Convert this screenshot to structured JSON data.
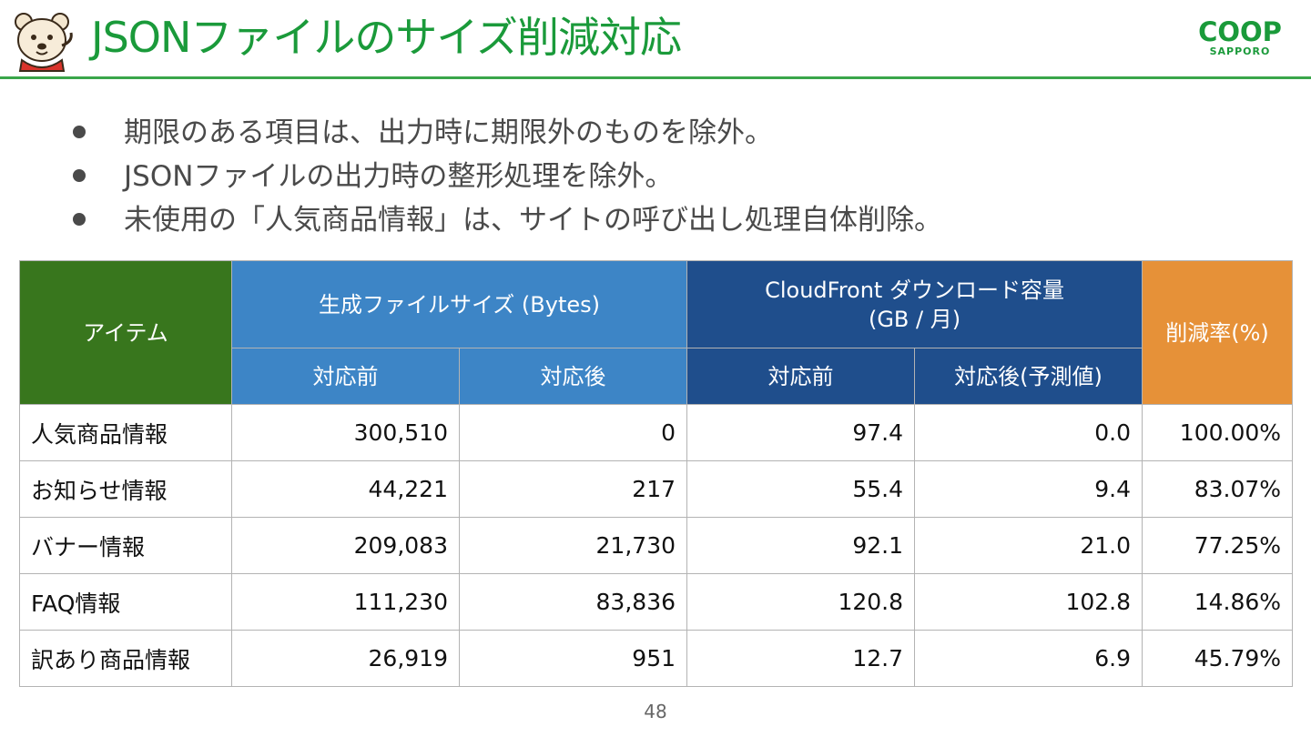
{
  "slide": {
    "title": "JSONファイルのサイズ削減対応",
    "logo": {
      "main": "COOP",
      "sub": "SAPPORO"
    },
    "bullets": [
      "期限のある項目は、出力時に期限外のものを除外。",
      "JSONファイルの出力時の整形処理を除外。",
      "未使用の「人気商品情報」は、サイトの呼び出し処理自体削除。"
    ],
    "page_number": "48"
  },
  "table": {
    "headers": {
      "item": "アイテム",
      "size_group": "生成ファイルサイズ (Bytes)",
      "cf_group_line1": "CloudFront ダウンロード容量",
      "cf_group_line2": "(GB / 月)",
      "rate": "削減率(%)",
      "size_before": "対応前",
      "size_after": "対応後",
      "cf_before": "対応前",
      "cf_after": "対応後(予測値)"
    },
    "rows": [
      {
        "item": "人気商品情報",
        "size_before": "300,510",
        "size_after": "0",
        "cf_before": "97.4",
        "cf_after": "0.0",
        "rate": "100.00%"
      },
      {
        "item": "お知らせ情報",
        "size_before": "44,221",
        "size_after": "217",
        "cf_before": "55.4",
        "cf_after": "9.4",
        "rate": "83.07%"
      },
      {
        "item": "バナー情報",
        "size_before": "209,083",
        "size_after": "21,730",
        "cf_before": "92.1",
        "cf_after": "21.0",
        "rate": "77.25%"
      },
      {
        "item": "FAQ情報",
        "size_before": "111,230",
        "size_after": "83,836",
        "cf_before": "120.8",
        "cf_after": "102.8",
        "rate": "14.86%"
      },
      {
        "item": "訳あり商品情報",
        "size_before": "26,919",
        "size_after": "951",
        "cf_before": "12.7",
        "cf_after": "6.9",
        "rate": "45.79%"
      }
    ]
  },
  "colors": {
    "title_green": "#1a9a3a",
    "item_header": "#38761d",
    "size_header": "#3d85c6",
    "cf_header": "#1f4e8c",
    "rate_header": "#e69138"
  },
  "icons": {
    "mascot": "bear-mascot-icon"
  }
}
